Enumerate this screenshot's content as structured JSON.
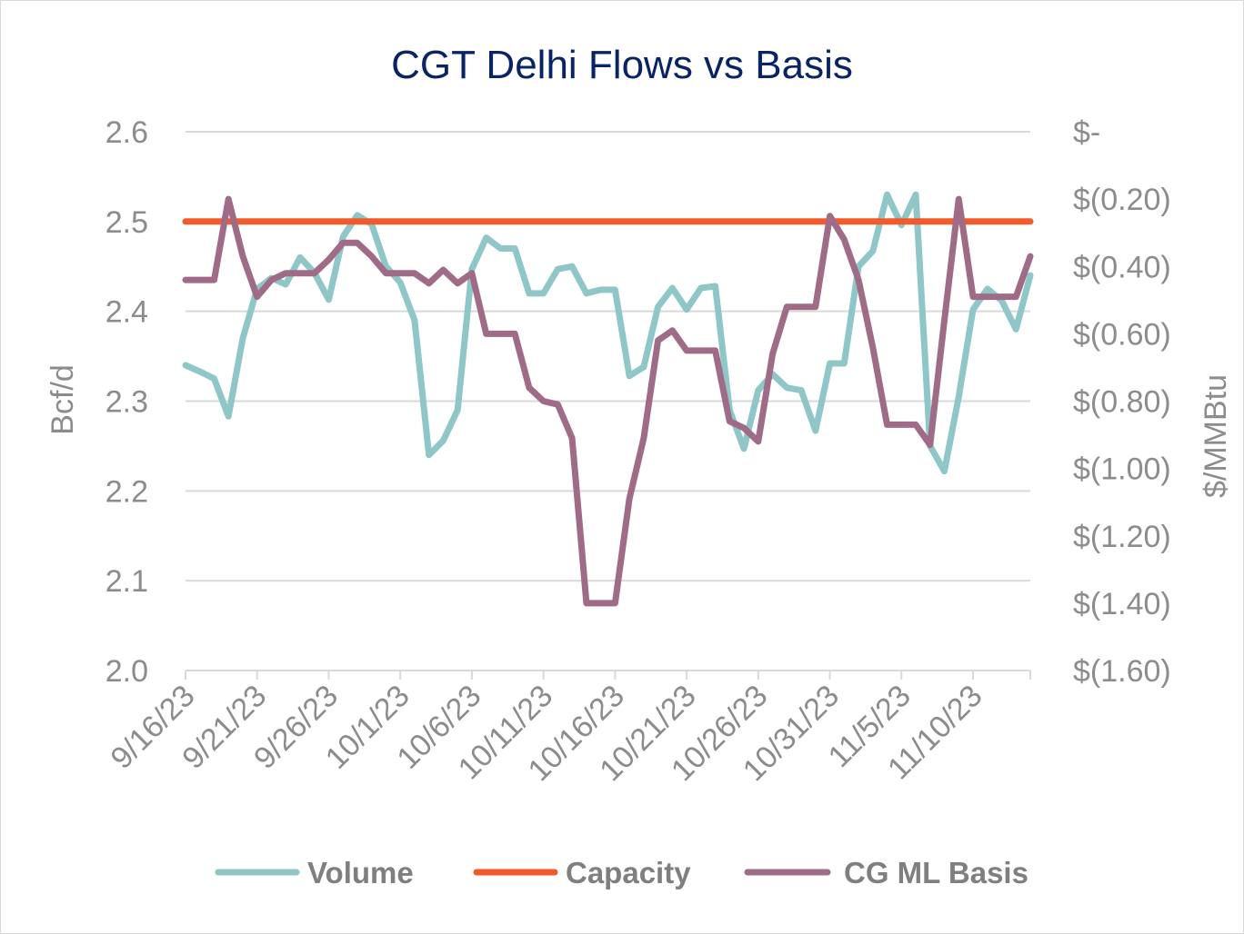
{
  "chart_data": {
    "type": "line",
    "title": "CGT Delhi Flows vs Basis",
    "ylabel_left": "Bcf/d",
    "ylabel_right": "$/MMBtu",
    "ylim_left": [
      2.0,
      2.6
    ],
    "ylim_right": [
      -1.6,
      0.0
    ],
    "yticks_left": [
      "2.6",
      "2.5",
      "2.4",
      "2.3",
      "2.2",
      "2.1",
      "2.0"
    ],
    "yticks_right": [
      "$-",
      "$(0.20)",
      "$(0.40)",
      "$(0.60)",
      "$(0.80)",
      "$(1.00)",
      "$(1.20)",
      "$(1.40)",
      "$(1.60)"
    ],
    "xtick_labels": [
      "9/16/23",
      "9/21/23",
      "9/26/23",
      "10/1/23",
      "10/6/23",
      "10/11/23",
      "10/16/23",
      "10/21/23",
      "10/26/23",
      "10/31/23",
      "11/5/23",
      "11/10/23"
    ],
    "grid": true,
    "legend_position": "bottom",
    "colors": {
      "volume": "#8fc6c7",
      "capacity": "#f25a2a",
      "basis": "#a06b87",
      "grid": "#d9d9d9",
      "title": "#0a2463"
    },
    "series": [
      {
        "name": "Volume",
        "axis": "left",
        "values": [
          2.34,
          2.333,
          2.325,
          2.283,
          2.37,
          2.425,
          2.437,
          2.43,
          2.46,
          2.443,
          2.413,
          2.483,
          2.507,
          2.497,
          2.45,
          2.432,
          2.39,
          2.24,
          2.256,
          2.29,
          2.447,
          2.482,
          2.47,
          2.47,
          2.42,
          2.42,
          2.447,
          2.45,
          2.42,
          2.424,
          2.424,
          2.328,
          2.338,
          2.405,
          2.426,
          2.402,
          2.426,
          2.428,
          2.29,
          2.247,
          2.312,
          2.33,
          2.315,
          2.312,
          2.267,
          2.342,
          2.342,
          2.45,
          2.467,
          2.53,
          2.496,
          2.53,
          2.25,
          2.222,
          2.305,
          2.402,
          2.425,
          2.412,
          2.38,
          2.44
        ]
      },
      {
        "name": "Capacity",
        "axis": "left",
        "values": [
          2.5,
          2.5,
          2.5,
          2.5,
          2.5,
          2.5,
          2.5,
          2.5,
          2.5,
          2.5,
          2.5,
          2.5,
          2.5,
          2.5,
          2.5,
          2.5,
          2.5,
          2.5,
          2.5,
          2.5,
          2.5,
          2.5,
          2.5,
          2.5,
          2.5,
          2.5,
          2.5,
          2.5,
          2.5,
          2.5,
          2.5,
          2.5,
          2.5,
          2.5,
          2.5,
          2.5,
          2.5,
          2.5,
          2.5,
          2.5,
          2.5,
          2.5,
          2.5,
          2.5,
          2.5,
          2.5,
          2.5,
          2.5,
          2.5,
          2.5,
          2.5,
          2.5,
          2.5,
          2.5,
          2.5,
          2.5,
          2.5,
          2.5,
          2.5,
          2.5
        ]
      },
      {
        "name": "CG ML Basis",
        "axis": "right",
        "values": [
          -0.44,
          -0.44,
          -0.44,
          -0.2,
          -0.37,
          -0.49,
          -0.44,
          -0.42,
          -0.42,
          -0.42,
          -0.38,
          -0.33,
          -0.33,
          -0.37,
          -0.42,
          -0.42,
          -0.42,
          -0.45,
          -0.41,
          -0.45,
          -0.42,
          -0.6,
          -0.6,
          -0.6,
          -0.76,
          -0.8,
          -0.81,
          -0.91,
          -1.4,
          -1.4,
          -1.4,
          -1.09,
          -0.91,
          -0.62,
          -0.59,
          -0.65,
          -0.65,
          -0.65,
          -0.86,
          -0.88,
          -0.92,
          -0.66,
          -0.52,
          -0.52,
          -0.52,
          -0.25,
          -0.32,
          -0.44,
          -0.64,
          -0.87,
          -0.87,
          -0.87,
          -0.93,
          -0.56,
          -0.2,
          -0.49,
          -0.49,
          -0.49,
          -0.49,
          -0.37
        ]
      }
    ]
  }
}
